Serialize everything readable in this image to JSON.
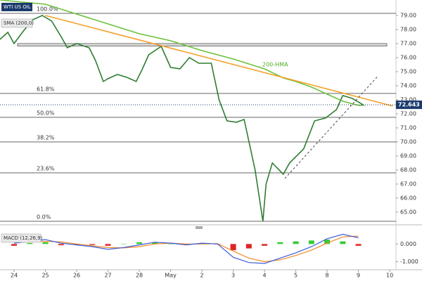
{
  "chart_data": [
    {
      "type": "line",
      "title": "WTI US OIL",
      "indicator_label": "SMA (200,0)",
      "annotation": "200-HMA",
      "xlim": [
        -0.45,
        12.2
      ],
      "xticks": [
        {
          "value": 0,
          "label": "24"
        },
        {
          "value": 1,
          "label": "25"
        },
        {
          "value": 2,
          "label": "26"
        },
        {
          "value": 3,
          "label": "27"
        },
        {
          "value": 4,
          "label": "28"
        },
        {
          "value": 5,
          "label": "May"
        },
        {
          "value": 6,
          "label": "2"
        },
        {
          "value": 7,
          "label": "3"
        },
        {
          "value": 8,
          "label": "4"
        },
        {
          "value": 9,
          "label": "5"
        },
        {
          "value": 10,
          "label": "8"
        },
        {
          "value": 11,
          "label": "9"
        },
        {
          "value": 12,
          "label": "10"
        }
      ],
      "ylim": [
        64.2,
        80.1
      ],
      "yticks": [
        {
          "value": 65,
          "label": "65.00"
        },
        {
          "value": 66,
          "label": "66.00"
        },
        {
          "value": 67,
          "label": "67.00"
        },
        {
          "value": 68,
          "label": "68.00"
        },
        {
          "value": 69,
          "label": "69.00"
        },
        {
          "value": 70,
          "label": "70.00"
        },
        {
          "value": 71,
          "label": "71.00"
        },
        {
          "value": 72,
          "label": "72.00"
        },
        {
          "value": 73,
          "label": "73.00"
        },
        {
          "value": 74,
          "label": "74.00"
        },
        {
          "value": 75,
          "label": "75.00"
        },
        {
          "value": 76,
          "label": "76.00"
        },
        {
          "value": 77,
          "label": "77.00"
        },
        {
          "value": 78,
          "label": "78.00"
        },
        {
          "value": 79,
          "label": "79.00"
        }
      ],
      "series": [
        {
          "color": "#2e7d32",
          "x": [
            -0.45,
            -0.2,
            0,
            0.3,
            0.6,
            0.9,
            1.2,
            1.5,
            1.7,
            2.0,
            2.4,
            2.6,
            2.85,
            3.0,
            3.3,
            3.6,
            3.9,
            4.1,
            4.3,
            4.7,
            5.0,
            5.3,
            5.6,
            5.9,
            6.3,
            6.55,
            6.8,
            7.1,
            7.35,
            7.7,
            7.95,
            8.05,
            8.25,
            8.6,
            8.8,
            9.25,
            9.6,
            9.95,
            10.3,
            10.5,
            10.8,
            11.15
          ],
          "values": [
            77.3,
            77.8,
            77.0,
            77.9,
            78.7,
            79.0,
            78.6,
            77.5,
            76.7,
            77.0,
            76.7,
            75.8,
            74.3,
            74.5,
            74.8,
            74.6,
            74.3,
            75.2,
            76.2,
            76.8,
            75.3,
            75.2,
            76.0,
            75.6,
            75.6,
            73.0,
            71.5,
            71.4,
            71.6,
            68.0,
            64.35,
            67.0,
            68.5,
            67.7,
            68.5,
            69.5,
            71.5,
            71.7,
            72.3,
            73.3,
            73.1,
            72.64
          ]
        },
        {
          "name": "SMA (200,0)",
          "color": "#6cc03a",
          "x": [
            -0.45,
            1.0,
            2.0,
            3.0,
            4.0,
            5.0,
            6.0,
            7.0,
            8.0,
            8.6,
            9.0,
            9.5,
            10.0,
            10.5,
            11.0,
            11.2
          ],
          "values": [
            80.1,
            79.8,
            79.1,
            78.4,
            77.7,
            77.2,
            76.5,
            75.9,
            75.2,
            74.55,
            74.3,
            73.9,
            73.4,
            72.9,
            72.6,
            72.6
          ]
        },
        {
          "color": "#f5a02a",
          "x": [
            1.0,
            12.1
          ],
          "values": [
            79.0,
            72.55
          ]
        },
        {
          "color": "#444444",
          "dashed": true,
          "x": [
            8.65,
            11.63
          ],
          "values": [
            67.4,
            74.7
          ]
        }
      ],
      "fib_levels": [
        {
          "level": {
            "value": 100,
            "label": "100.0%"
          },
          "price": 79.15
        },
        {
          "level": 61.8,
          "price": 73.45
        },
        {
          "level": 50,
          "price": 71.75
        },
        {
          "level": 38.2,
          "price": 70.0
        },
        {
          "level": 23.6,
          "price": 67.8
        },
        {
          "level": 0,
          "price": 64.35
        }
      ],
      "zone": [
        76.82,
        77.0
      ],
      "current_price": 72.643
    },
    {
      "type": "macd",
      "title": "MACD (12,26,9)",
      "xlim": [
        -0.45,
        12.2
      ],
      "ylim": [
        -1.38,
        0.77
      ],
      "yticks": [
        {
          "value": 0,
          "label": "0.000"
        },
        {
          "value": -1,
          "label": "-1.000"
        }
      ],
      "x": [
        0,
        0.5,
        1,
        1.5,
        2,
        2.5,
        3,
        3.5,
        4,
        4.5,
        5,
        5.5,
        6,
        6.5,
        7,
        7.5,
        8,
        8.5,
        9,
        9.5,
        10,
        10.5,
        11
      ],
      "macd": {
        "color": "#3b5bdb",
        "values": [
          0.05,
          0.15,
          0.25,
          0.05,
          -0.05,
          -0.15,
          -0.3,
          -0.2,
          -0.05,
          0.1,
          0.05,
          -0.05,
          0.05,
          0.0,
          -0.75,
          -1.05,
          -1.1,
          -0.8,
          -0.5,
          -0.15,
          0.3,
          0.55,
          0.35
        ]
      },
      "signal": {
        "color": "#f08a24",
        "values": [
          0.15,
          0.1,
          0.15,
          0.12,
          0.0,
          -0.1,
          -0.2,
          -0.22,
          -0.15,
          0.0,
          0.05,
          0.0,
          0.0,
          0.02,
          -0.4,
          -0.8,
          -1.0,
          -0.9,
          -0.65,
          -0.35,
          0.05,
          0.4,
          0.45
        ]
      },
      "histogram": {
        "up_color": "#33cc33",
        "down_color": "#e02424",
        "values": [
          -0.1,
          0.05,
          0.1,
          -0.07,
          -0.05,
          -0.05,
          -0.1,
          0.02,
          0.1,
          0.1,
          0.0,
          -0.05,
          0.05,
          -0.02,
          -0.35,
          -0.25,
          -0.1,
          0.1,
          0.15,
          0.2,
          0.25,
          0.15,
          -0.1
        ]
      }
    }
  ]
}
